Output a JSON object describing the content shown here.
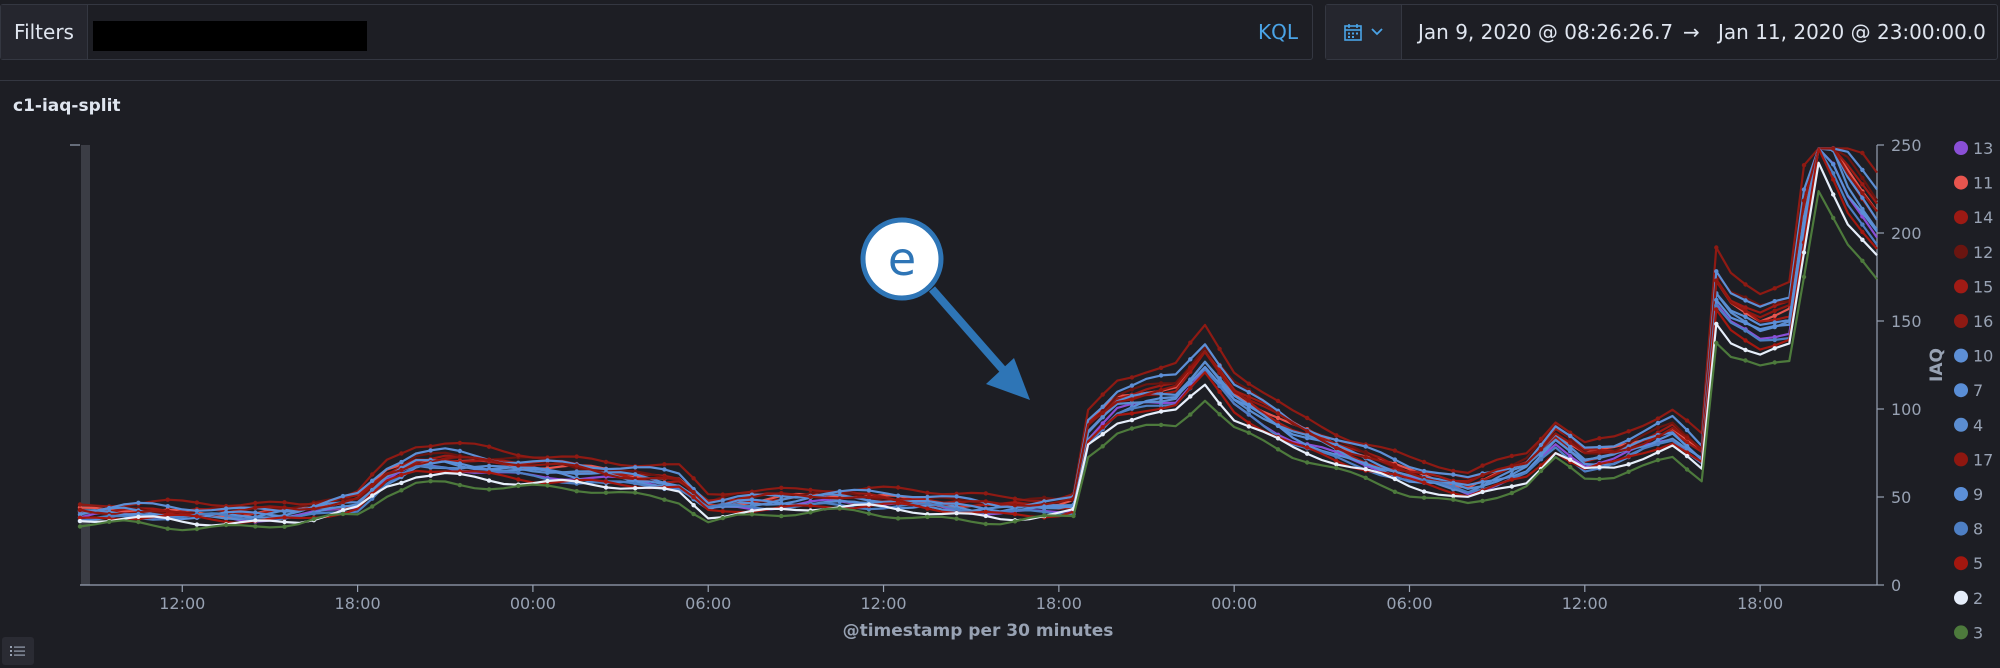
{
  "filters": {
    "label": "Filters",
    "language": "KQL"
  },
  "date_range": {
    "start": "Jan 9, 2020 @ 08:26:26.7",
    "arrow": "→",
    "end": "Jan 11, 2020 @ 23:00:00.0"
  },
  "panel": {
    "title": "c1-iaq-split"
  },
  "annotation": {
    "label": "e"
  },
  "chart_data": {
    "type": "line",
    "title": "c1-iaq-split",
    "xlabel": "@timestamp per 30 minutes",
    "ylabel": "IAQ",
    "x_start": "2020-01-09T08:30",
    "x_end": "2020-01-11T22:00",
    "x_tick_labels": [
      "12:00",
      "18:00",
      "00:00",
      "06:00",
      "12:00",
      "18:00",
      "00:00",
      "06:00",
      "12:00",
      "18:00"
    ],
    "y_ticks": [
      0,
      50,
      100,
      150,
      200,
      250
    ],
    "ylim": [
      0,
      250
    ],
    "legend_position": "right",
    "grid": false,
    "base_profile": {
      "times": [
        "Jan 9 08:30",
        "Jan 9 10:00",
        "Jan 9 12:00",
        "Jan 9 14:00",
        "Jan 9 16:00",
        "Jan 9 18:00",
        "Jan 9 19:00",
        "Jan 9 20:00",
        "Jan 9 21:00",
        "Jan 9 23:00",
        "Jan 10 01:00",
        "Jan 10 03:00",
        "Jan 10 05:00",
        "Jan 10 06:00",
        "Jan 10 07:00",
        "Jan 10 10:00",
        "Jan 10 13:00",
        "Jan 10 16:00",
        "Jan 10 18:00",
        "Jan 10 18:30",
        "Jan 10 19:00",
        "Jan 10 20:00",
        "Jan 10 21:00",
        "Jan 10 22:00",
        "Jan 10 23:00",
        "Jan 11 00:00",
        "Jan 11 02:00",
        "Jan 11 04:00",
        "Jan 11 06:00",
        "Jan 11 08:00",
        "Jan 11 10:00",
        "Jan 11 11:00",
        "Jan 11 12:00",
        "Jan 11 13:00",
        "Jan 11 14:00",
        "Jan 11 15:00",
        "Jan 11 16:00",
        "Jan 11 16:30",
        "Jan 11 17:00",
        "Jan 11 18:00",
        "Jan 11 19:00",
        "Jan 11 20:00",
        "Jan 11 21:00",
        "Jan 11 22:00"
      ],
      "values": [
        36,
        37,
        36,
        36,
        37,
        42,
        55,
        62,
        63,
        60,
        58,
        55,
        52,
        40,
        42,
        44,
        42,
        39,
        40,
        41,
        78,
        92,
        96,
        98,
        115,
        96,
        78,
        66,
        56,
        50,
        60,
        75,
        64,
        66,
        72,
        78,
        66,
        150,
        140,
        132,
        136,
        240,
        205,
        185
      ]
    },
    "series": [
      {
        "name": "13",
        "color": "#8a4fd6",
        "offset": 4
      },
      {
        "name": "11",
        "color": "#e8554e",
        "offset": 9
      },
      {
        "name": "14",
        "color": "#9c1a14",
        "offset": 10
      },
      {
        "name": "12",
        "color": "#6a1510",
        "offset": 11
      },
      {
        "name": "15",
        "color": "#a01b15",
        "offset": 8
      },
      {
        "name": "16",
        "color": "#8e1a13",
        "offset": 16
      },
      {
        "name": "10",
        "color": "#5d8fd6",
        "offset": 12
      },
      {
        "name": "7",
        "color": "#5a8ed6",
        "offset": 7
      },
      {
        "name": "4",
        "color": "#5b8dd0",
        "offset": 6
      },
      {
        "name": "17",
        "color": "#8f1710",
        "offset": 9
      },
      {
        "name": "9",
        "color": "#5b8fd8",
        "offset": 5
      },
      {
        "name": "8",
        "color": "#4e7fc4",
        "offset": 3
      },
      {
        "name": "5",
        "color": "#a3170f",
        "offset": 2
      },
      {
        "name": "2",
        "color": "#e6eefa",
        "offset": 0
      },
      {
        "name": "3",
        "color": "#4d7a3c",
        "offset": -4
      }
    ]
  }
}
